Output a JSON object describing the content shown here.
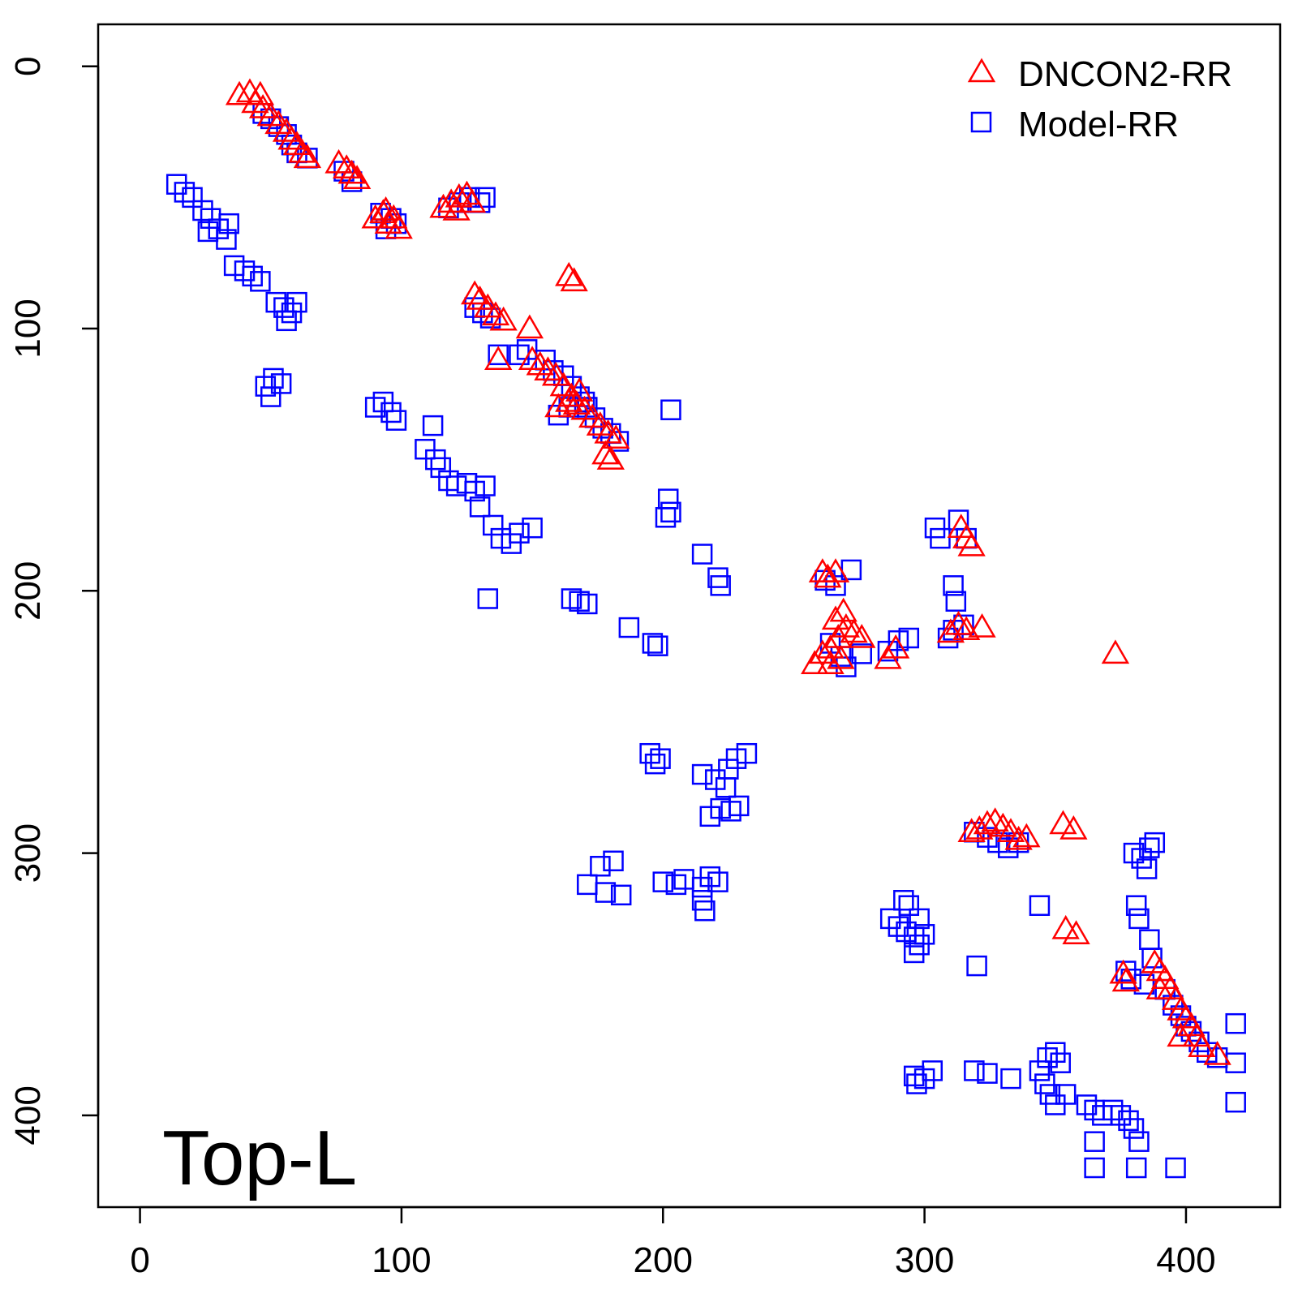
{
  "chart_data": {
    "type": "scatter",
    "title": "",
    "xlabel": "",
    "ylabel": "",
    "annotation": "Top-L",
    "xlim": [
      -16,
      436
    ],
    "ylim": [
      435,
      -16
    ],
    "y_reversed": true,
    "grid": false,
    "legend_position": "top-right",
    "x_ticks": [
      0,
      100,
      200,
      300,
      400
    ],
    "y_ticks": [
      0,
      100,
      200,
      300,
      400
    ],
    "series": [
      {
        "name": "Model-RR",
        "marker": "square",
        "color": "#0000ff",
        "points": [
          [
            47,
            18
          ],
          [
            50,
            20
          ],
          [
            53,
            23
          ],
          [
            56,
            26
          ],
          [
            58,
            30
          ],
          [
            60,
            33
          ],
          [
            64,
            35
          ],
          [
            78,
            40
          ],
          [
            81,
            44
          ],
          [
            92,
            56
          ],
          [
            96,
            58
          ],
          [
            98,
            60
          ],
          [
            94,
            62
          ],
          [
            118,
            54
          ],
          [
            122,
            52
          ],
          [
            126,
            50
          ],
          [
            130,
            52
          ],
          [
            132,
            50
          ],
          [
            14,
            45
          ],
          [
            17,
            48
          ],
          [
            20,
            50
          ],
          [
            24,
            55
          ],
          [
            27,
            58
          ],
          [
            30,
            62
          ],
          [
            34,
            60
          ],
          [
            26,
            63
          ],
          [
            33,
            66
          ],
          [
            36,
            76
          ],
          [
            40,
            78
          ],
          [
            43,
            80
          ],
          [
            46,
            82
          ],
          [
            52,
            90
          ],
          [
            55,
            92
          ],
          [
            58,
            94
          ],
          [
            60,
            90
          ],
          [
            56,
            97
          ],
          [
            48,
            122
          ],
          [
            51,
            119
          ],
          [
            54,
            121
          ],
          [
            50,
            126
          ],
          [
            90,
            130
          ],
          [
            93,
            128
          ],
          [
            96,
            132
          ],
          [
            98,
            135
          ],
          [
            109,
            146
          ],
          [
            112,
            137
          ],
          [
            113,
            150
          ],
          [
            115,
            153
          ],
          [
            118,
            158
          ],
          [
            121,
            160
          ],
          [
            125,
            159
          ],
          [
            128,
            162
          ],
          [
            130,
            168
          ],
          [
            132,
            160
          ],
          [
            135,
            175
          ],
          [
            138,
            180
          ],
          [
            142,
            182
          ],
          [
            145,
            178
          ],
          [
            150,
            176
          ],
          [
            133,
            203
          ],
          [
            128,
            92
          ],
          [
            131,
            94
          ],
          [
            134,
            96
          ],
          [
            137,
            110
          ],
          [
            145,
            110
          ],
          [
            148,
            108
          ],
          [
            155,
            112
          ],
          [
            158,
            116
          ],
          [
            162,
            118
          ],
          [
            165,
            122
          ],
          [
            168,
            126
          ],
          [
            171,
            130
          ],
          [
            174,
            134
          ],
          [
            177,
            138
          ],
          [
            180,
            140
          ],
          [
            183,
            143
          ],
          [
            160,
            133
          ],
          [
            164,
            130
          ],
          [
            170,
            128
          ],
          [
            202,
            165
          ],
          [
            203,
            170
          ],
          [
            201,
            172
          ],
          [
            215,
            186
          ],
          [
            221,
            195
          ],
          [
            222,
            198
          ],
          [
            203,
            131
          ],
          [
            165,
            203
          ],
          [
            168,
            204
          ],
          [
            171,
            205
          ],
          [
            187,
            214
          ],
          [
            196,
            220
          ],
          [
            198,
            221
          ],
          [
            195,
            262
          ],
          [
            197,
            266
          ],
          [
            199,
            264
          ],
          [
            215,
            270
          ],
          [
            220,
            272
          ],
          [
            225,
            268
          ],
          [
            228,
            264
          ],
          [
            232,
            262
          ],
          [
            224,
            275
          ],
          [
            218,
            286
          ],
          [
            222,
            283
          ],
          [
            226,
            284
          ],
          [
            229,
            282
          ],
          [
            176,
            305
          ],
          [
            181,
            303
          ],
          [
            171,
            312
          ],
          [
            178,
            315
          ],
          [
            184,
            316
          ],
          [
            200,
            311
          ],
          [
            205,
            312
          ],
          [
            208,
            310
          ],
          [
            215,
            313
          ],
          [
            218,
            309
          ],
          [
            221,
            311
          ],
          [
            215,
            318
          ],
          [
            216,
            322
          ],
          [
            262,
            196
          ],
          [
            266,
            198
          ],
          [
            272,
            192
          ],
          [
            264,
            220
          ],
          [
            268,
            225
          ],
          [
            270,
            229
          ],
          [
            276,
            224
          ],
          [
            286,
            223
          ],
          [
            290,
            219
          ],
          [
            294,
            218
          ],
          [
            304,
            176
          ],
          [
            306,
            180
          ],
          [
            311,
            198
          ],
          [
            312,
            204
          ],
          [
            313,
            173
          ],
          [
            316,
            180
          ],
          [
            309,
            218
          ],
          [
            311,
            215
          ],
          [
            315,
            213
          ],
          [
            287,
            325
          ],
          [
            290,
            328
          ],
          [
            293,
            330
          ],
          [
            296,
            332
          ],
          [
            298,
            335
          ],
          [
            292,
            318
          ],
          [
            294,
            320
          ],
          [
            298,
            325
          ],
          [
            300,
            331
          ],
          [
            296,
            338
          ],
          [
            296,
            385
          ],
          [
            300,
            386
          ],
          [
            303,
            383
          ],
          [
            297,
            388
          ],
          [
            319,
            292
          ],
          [
            324,
            294
          ],
          [
            328,
            296
          ],
          [
            332,
            298
          ],
          [
            336,
            296
          ],
          [
            320,
            343
          ],
          [
            344,
            320
          ],
          [
            319,
            383
          ],
          [
            324,
            384
          ],
          [
            333,
            386
          ],
          [
            344,
            383
          ],
          [
            347,
            378
          ],
          [
            350,
            376
          ],
          [
            352,
            380
          ],
          [
            346,
            388
          ],
          [
            348,
            392
          ],
          [
            350,
            396
          ],
          [
            354,
            392
          ],
          [
            362,
            396
          ],
          [
            365,
            398
          ],
          [
            368,
            400
          ],
          [
            372,
            398
          ],
          [
            375,
            400
          ],
          [
            378,
            402
          ],
          [
            380,
            405
          ],
          [
            365,
            420
          ],
          [
            381,
            420
          ],
          [
            396,
            420
          ],
          [
            365,
            410
          ],
          [
            382,
            410
          ],
          [
            380,
            300
          ],
          [
            383,
            302
          ],
          [
            386,
            298
          ],
          [
            388,
            296
          ],
          [
            385,
            306
          ],
          [
            381,
            320
          ],
          [
            382,
            325
          ],
          [
            386,
            333
          ],
          [
            387,
            340
          ],
          [
            377,
            345
          ],
          [
            379,
            348
          ],
          [
            384,
            350
          ],
          [
            392,
            352
          ],
          [
            395,
            358
          ],
          [
            398,
            362
          ],
          [
            400,
            366
          ],
          [
            402,
            368
          ],
          [
            405,
            372
          ],
          [
            408,
            376
          ],
          [
            419,
            365
          ],
          [
            419,
            380
          ],
          [
            419,
            395
          ],
          [
            412,
            378
          ]
        ]
      },
      {
        "name": "DNCON2-RR",
        "marker": "triangle",
        "color": "#ff0000",
        "points": [
          [
            38,
            11
          ],
          [
            42,
            10
          ],
          [
            46,
            11
          ],
          [
            44,
            14
          ],
          [
            47,
            16
          ],
          [
            50,
            19
          ],
          [
            53,
            22
          ],
          [
            56,
            25
          ],
          [
            58,
            28
          ],
          [
            60,
            30
          ],
          [
            62,
            33
          ],
          [
            64,
            35
          ],
          [
            76,
            37
          ],
          [
            79,
            39
          ],
          [
            81,
            41
          ],
          [
            83,
            43
          ],
          [
            90,
            58
          ],
          [
            93,
            56
          ],
          [
            95,
            60
          ],
          [
            97,
            58
          ],
          [
            99,
            62
          ],
          [
            94,
            55
          ],
          [
            116,
            54
          ],
          [
            119,
            52
          ],
          [
            122,
            50
          ],
          [
            125,
            49
          ],
          [
            127,
            52
          ],
          [
            121,
            55
          ],
          [
            164,
            80
          ],
          [
            166,
            82
          ],
          [
            128,
            87
          ],
          [
            130,
            89
          ],
          [
            133,
            92
          ],
          [
            136,
            95
          ],
          [
            139,
            97
          ],
          [
            137,
            112
          ],
          [
            149,
            100
          ],
          [
            150,
            112
          ],
          [
            153,
            114
          ],
          [
            156,
            116
          ],
          [
            159,
            118
          ],
          [
            162,
            122
          ],
          [
            165,
            126
          ],
          [
            167,
            129
          ],
          [
            170,
            131
          ],
          [
            173,
            134
          ],
          [
            176,
            137
          ],
          [
            179,
            140
          ],
          [
            182,
            142
          ],
          [
            160,
            130
          ],
          [
            164,
            128
          ],
          [
            168,
            124
          ],
          [
            178,
            148
          ],
          [
            180,
            150
          ],
          [
            261,
            193
          ],
          [
            263,
            195
          ],
          [
            266,
            193
          ],
          [
            258,
            228
          ],
          [
            261,
            224
          ],
          [
            264,
            222
          ],
          [
            267,
            218
          ],
          [
            270,
            214
          ],
          [
            273,
            216
          ],
          [
            276,
            218
          ],
          [
            266,
            211
          ],
          [
            269,
            208
          ],
          [
            264,
            228
          ],
          [
            268,
            226
          ],
          [
            286,
            226
          ],
          [
            289,
            222
          ],
          [
            310,
            216
          ],
          [
            313,
            213
          ],
          [
            316,
            215
          ],
          [
            322,
            214
          ],
          [
            314,
            176
          ],
          [
            316,
            180
          ],
          [
            318,
            183
          ],
          [
            373,
            224
          ],
          [
            318,
            292
          ],
          [
            321,
            291
          ],
          [
            324,
            289
          ],
          [
            327,
            288
          ],
          [
            330,
            290
          ],
          [
            333,
            292
          ],
          [
            336,
            295
          ],
          [
            339,
            294
          ],
          [
            353,
            289
          ],
          [
            357,
            291
          ],
          [
            354,
            329
          ],
          [
            358,
            331
          ],
          [
            376,
            346
          ],
          [
            377,
            349
          ],
          [
            388,
            342
          ],
          [
            390,
            345
          ],
          [
            392,
            348
          ],
          [
            394,
            352
          ],
          [
            396,
            356
          ],
          [
            398,
            360
          ],
          [
            400,
            363
          ],
          [
            402,
            366
          ],
          [
            404,
            370
          ],
          [
            406,
            374
          ],
          [
            398,
            370
          ],
          [
            412,
            377
          ],
          [
            390,
            352
          ]
        ]
      }
    ]
  }
}
